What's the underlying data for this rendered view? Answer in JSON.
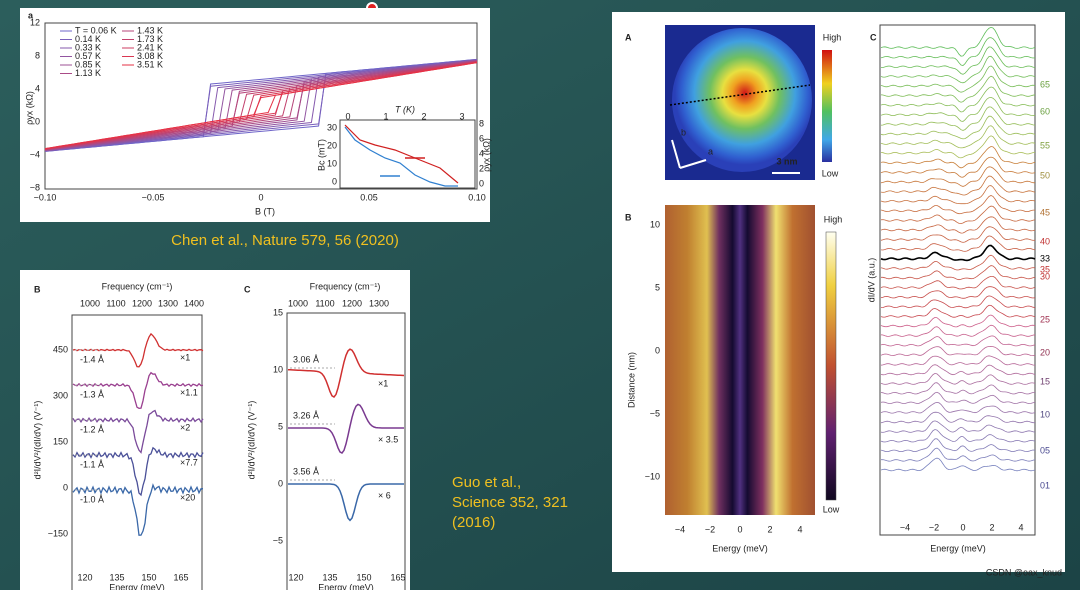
{
  "top_figure": {
    "panel": "a",
    "y_label": "ρyx (kΩ)",
    "x_label": "B (T)",
    "x_ticks": [
      "−0.10",
      "−0.05",
      "0",
      "0.05",
      "0.10"
    ],
    "y_ticks": [
      "12",
      "8",
      "4",
      "0",
      "−4",
      "−8"
    ],
    "legend": [
      "T = 0.06 K",
      "0.14 K",
      "0.33 K",
      "0.57 K",
      "0.85 K",
      "1.13 K",
      "1.43 K",
      "1.73 K",
      "2.41 K",
      "3.08 K",
      "3.51 K"
    ],
    "inset": {
      "top_label": "T (K)",
      "top_ticks": [
        "0",
        "1",
        "2",
        "3"
      ],
      "left_label": "Bc (mT)",
      "left_ticks": [
        "30",
        "20",
        "10",
        "0"
      ],
      "right_label": "ρyx (kΩ)",
      "right_ticks": [
        "8",
        "6",
        "4",
        "2",
        "0"
      ]
    },
    "caption": "Chen et al., Nature 579, 56 (2020)"
  },
  "left_b": {
    "panel": "B",
    "top_label": "Frequency (cm⁻¹)",
    "top_ticks": [
      "1000",
      "1100",
      "1200",
      "1300",
      "1400"
    ],
    "y_label": "d²I/dV²/(dI/dV) (V⁻¹)",
    "y_ticks": [
      "450",
      "300",
      "150",
      "0",
      "−150"
    ],
    "x_label": "Energy (meV)",
    "x_ticks": [
      "120",
      "135",
      "150",
      "165"
    ],
    "curve_labels": [
      "-1.4 Å",
      "-1.3 Å",
      "-1.2 Å",
      "-1.1 Å",
      "-1.0 Å"
    ],
    "factors": [
      "×1",
      "×1.1",
      "×2",
      "×7.7",
      "×20"
    ]
  },
  "left_c": {
    "panel": "C",
    "top_label": "Frequency (cm⁻¹)",
    "top_ticks": [
      "1000",
      "1100",
      "1200",
      "1300"
    ],
    "y_label": "d²I/dV²/(dI/dV) (V⁻¹)",
    "y_ticks": [
      "15",
      "10",
      "5",
      "0",
      "−5"
    ],
    "x_label": "Energy (meV)",
    "x_ticks": [
      "120",
      "135",
      "150",
      "165"
    ],
    "curve_labels": [
      "3.06 Å",
      "3.26 Å",
      "3.56 Å"
    ],
    "factors": [
      "×1",
      "× 3.5",
      "× 6"
    ]
  },
  "guo_caption": [
    "Guo et al.,",
    "Science 352, 321",
    "(2016)"
  ],
  "right": {
    "a": {
      "panel": "A",
      "high": "High",
      "low": "Low",
      "scale": "3 nm",
      "axis_a": "a",
      "axis_b": "b"
    },
    "b": {
      "panel": "B",
      "y_label": "Distance (nm)",
      "y_ticks": [
        "10",
        "5",
        "0",
        "−5",
        "−10"
      ],
      "x_ticks": [
        "−4",
        "−2",
        "0",
        "2",
        "4"
      ],
      "x_label": "Energy (meV)",
      "high": "High",
      "low": "Low"
    },
    "c": {
      "panel": "C",
      "y_label": "dI/dV (a.u.)",
      "x_ticks": [
        "−4",
        "−2",
        "0",
        "2",
        "4"
      ],
      "x_label": "Energy (meV)",
      "curve_labels": [
        "65",
        "60",
        "55",
        "50",
        "45",
        "40",
        "35",
        "33",
        "30",
        "25",
        "20",
        "15",
        "10",
        "05",
        "01"
      ]
    }
  },
  "watermark": "CSDN @oax_knud"
}
